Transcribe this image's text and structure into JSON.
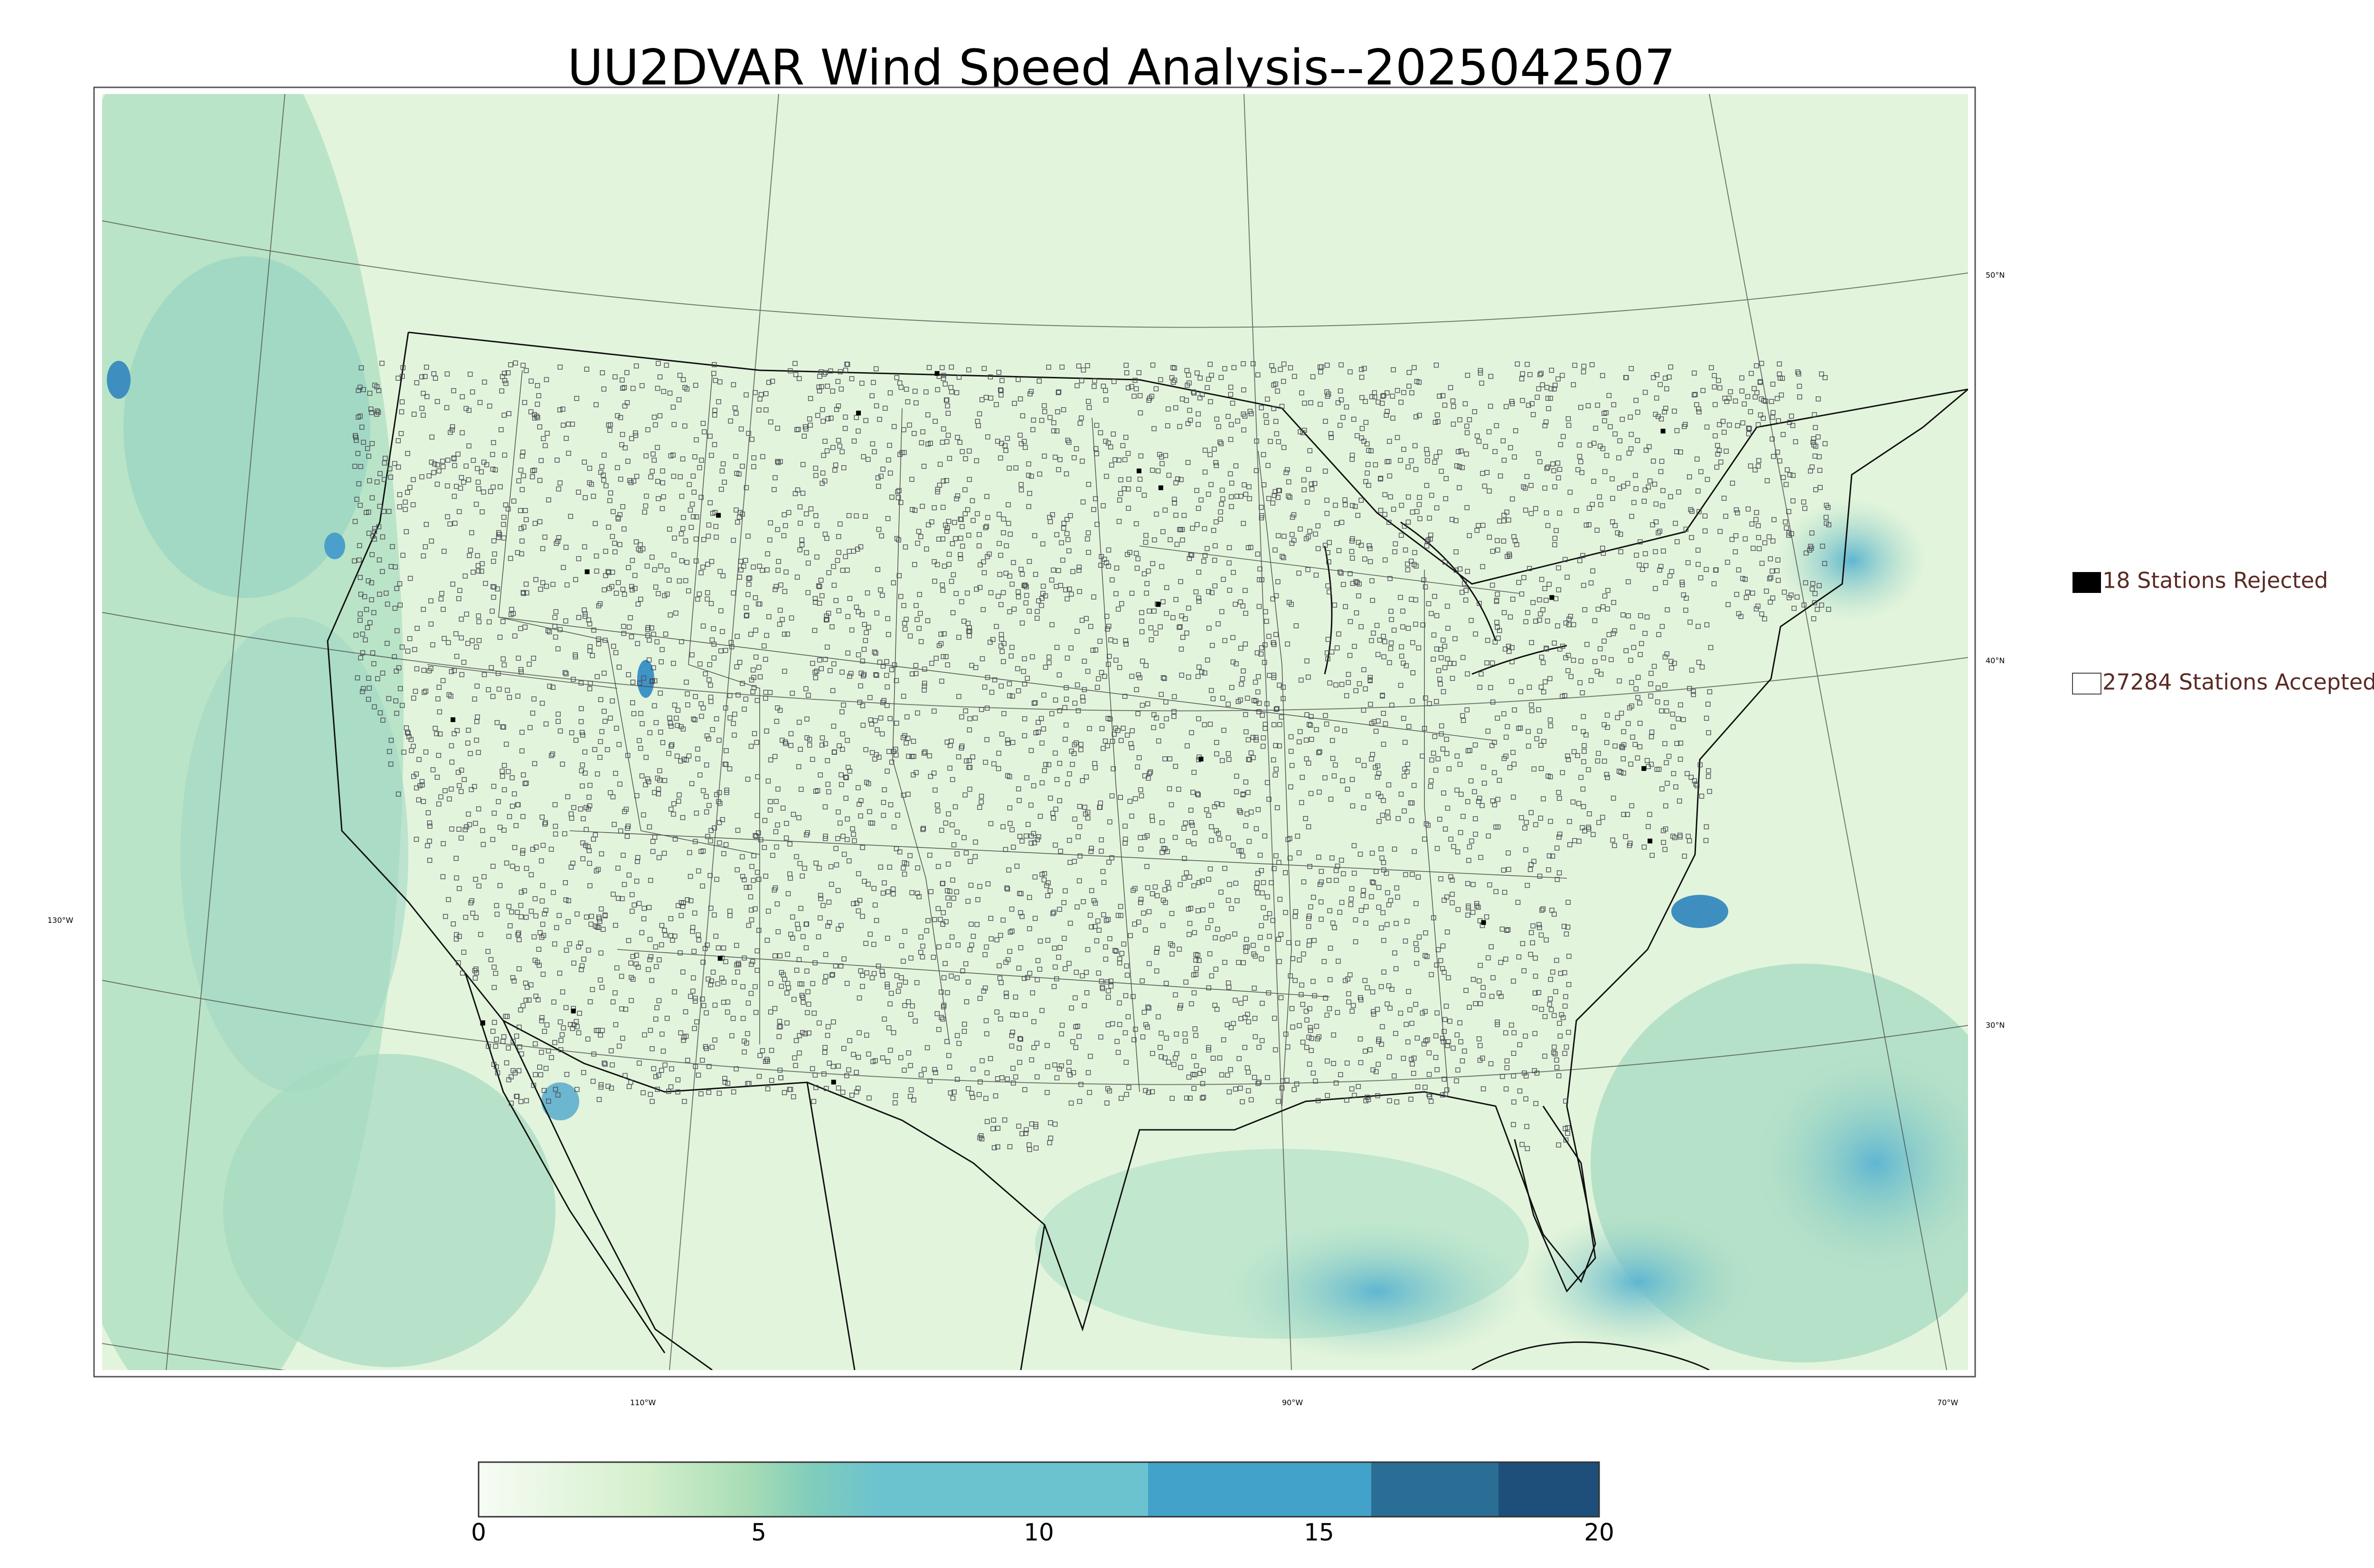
{
  "title": "UU2DVAR Wind Speed Analysis--2025042507",
  "legend": {
    "rejected": {
      "label": "18 Stations Rejected",
      "count": 18,
      "marker": "filled-black-square"
    },
    "accepted": {
      "label": "27284 Stations Accepted",
      "count": 27284,
      "marker": "open-square"
    }
  },
  "colorbar": {
    "ticks": [
      "0",
      "5",
      "10",
      "15",
      "20"
    ],
    "range": [
      0,
      20
    ],
    "colors": {
      "c0": "#f7fcf5",
      "c5": "#cfeec8",
      "c8": "#a6dcb6",
      "c10": "#8ad1c2",
      "c12": "#6cc3d0",
      "c12_16": "#43a2ca",
      "c16_18": "#2b6e95",
      "c18_20": "#1d4f7a"
    }
  },
  "gridlabels": {
    "lat": [
      "50°N",
      "40°N",
      "30°N"
    ],
    "lon": [
      "130°W",
      "110°W",
      "90°W",
      "70°W"
    ]
  },
  "map": {
    "land_color": "#e5f5e0",
    "ocean_color": "#c7e9c0",
    "border_color": "#000000",
    "station_color": "#4a4a55",
    "rejected_color": "#000000"
  }
}
